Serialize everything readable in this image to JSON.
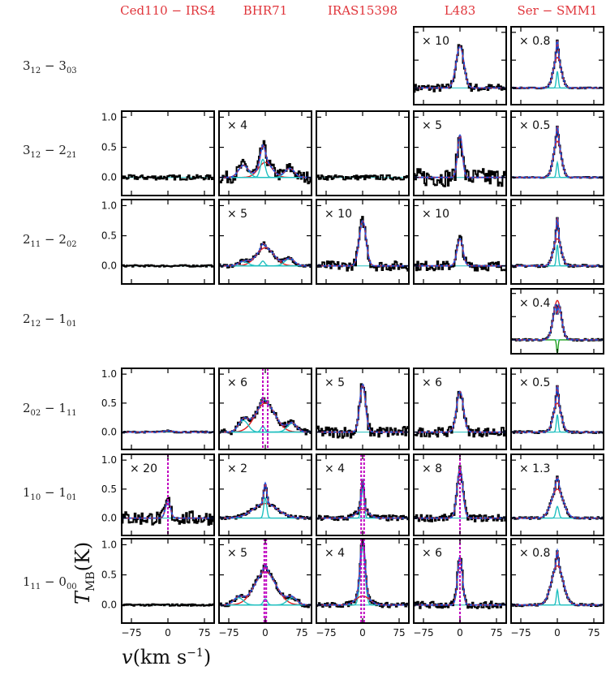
{
  "chart_data": {
    "type": "line",
    "xlabel": "v(km s−1)",
    "ylabel": "TMB(K)",
    "xlim": [
      -95,
      95
    ],
    "ylim": [
      -0.3,
      1.1
    ],
    "x_ticks": [
      -75,
      0,
      75
    ],
    "x_tick_labels": [
      "−75",
      "0",
      "75"
    ],
    "y_ticks": [
      0.0,
      0.5,
      1.0
    ],
    "y_tick_labels": [
      "0.0",
      "0.5",
      "1.0"
    ],
    "sources": [
      "Ced110 − IRS4",
      "BHR71",
      "IRAS15398",
      "L483",
      "Ser − SMM1"
    ],
    "transitions": [
      {
        "upper": "3",
        "usub": "12",
        "lower": "3",
        "lsub": "03"
      },
      {
        "upper": "3",
        "usub": "12",
        "lower": "2",
        "lsub": "21"
      },
      {
        "upper": "2",
        "usub": "11",
        "lower": "2",
        "lsub": "02"
      },
      {
        "upper": "2",
        "usub": "12",
        "lower": "1",
        "lsub": "01"
      },
      {
        "upper": "2",
        "usub": "02",
        "lower": "1",
        "lsub": "11"
      },
      {
        "upper": "1",
        "usub": "10",
        "lower": "1",
        "lsub": "01"
      },
      {
        "upper": "1",
        "usub": "11",
        "lower": "0",
        "lsub": "00"
      }
    ],
    "series_legend": {
      "observed": "#000000",
      "total_fit": "#1f4fe0",
      "broad_component": "#e02020",
      "narrow_component": "#20c0c0",
      "model": "#c000c0"
    },
    "panels": [
      {
        "row": 0,
        "col": 3,
        "scale": "× 10",
        "components": [
          {
            "type": "narrow",
            "center": 0,
            "width": 8,
            "amp": 0.75
          }
        ],
        "noise": 0.07
      },
      {
        "row": 0,
        "col": 4,
        "scale": "× 0.8",
        "components": [
          {
            "type": "broad",
            "center": 0,
            "width": 8,
            "amp": 0.55
          },
          {
            "type": "narrow",
            "center": 0,
            "width": 2,
            "amp": 0.3
          }
        ],
        "noise": 0.01
      },
      {
        "row": 1,
        "col": 0,
        "scale": "",
        "components": [],
        "noise": 0.04
      },
      {
        "row": 1,
        "col": 1,
        "scale": "× 4",
        "components": [
          {
            "type": "broad",
            "center": 0,
            "width": 14,
            "amp": 0.25
          },
          {
            "type": "narrow",
            "center": -5,
            "width": 5,
            "amp": 0.3
          },
          {
            "type": "wing",
            "center": -45,
            "width": 10,
            "amp": 0.2
          },
          {
            "type": "wing",
            "center": 50,
            "width": 10,
            "amp": 0.15
          }
        ],
        "noise": 0.1
      },
      {
        "row": 1,
        "col": 2,
        "scale": "",
        "components": [],
        "noise": 0.04
      },
      {
        "row": 1,
        "col": 3,
        "scale": "× 5",
        "components": [
          {
            "type": "narrow",
            "center": 0,
            "width": 5,
            "amp": 0.7
          }
        ],
        "noise": 0.15
      },
      {
        "row": 1,
        "col": 4,
        "scale": "× 0.5",
        "components": [
          {
            "type": "broad",
            "center": 0,
            "width": 8,
            "amp": 0.6
          },
          {
            "type": "narrow",
            "center": 0,
            "width": 2,
            "amp": 0.25
          }
        ],
        "noise": 0.01
      },
      {
        "row": 2,
        "col": 0,
        "scale": "",
        "components": [],
        "noise": 0.015
      },
      {
        "row": 2,
        "col": 1,
        "scale": "× 5",
        "components": [
          {
            "type": "broad",
            "center": 0,
            "width": 18,
            "amp": 0.3
          },
          {
            "type": "narrow",
            "center": -5,
            "width": 4,
            "amp": 0.08
          },
          {
            "type": "wing",
            "center": -45,
            "width": 10,
            "amp": 0.07
          },
          {
            "type": "wing",
            "center": 50,
            "width": 10,
            "amp": 0.12
          }
        ],
        "noise": 0.03
      },
      {
        "row": 2,
        "col": 2,
        "scale": "× 10",
        "components": [
          {
            "type": "narrow",
            "center": 0,
            "width": 7,
            "amp": 0.75
          }
        ],
        "noise": 0.08
      },
      {
        "row": 2,
        "col": 3,
        "scale": "× 10",
        "components": [
          {
            "type": "narrow",
            "center": 0,
            "width": 6,
            "amp": 0.45
          }
        ],
        "noise": 0.08
      },
      {
        "row": 2,
        "col": 4,
        "scale": "",
        "components": [
          {
            "type": "broad",
            "center": 0,
            "width": 8,
            "amp": 0.45
          },
          {
            "type": "narrow",
            "center": 0,
            "width": 2,
            "amp": 0.35
          }
        ],
        "noise": 0.02
      },
      {
        "row": 3,
        "col": 4,
        "scale": "× 0.4",
        "components": [
          {
            "type": "broad",
            "center": 0,
            "width": 8,
            "amp": 0.85
          },
          {
            "type": "absorb",
            "center": 0,
            "width": 1.5,
            "amp": -0.3
          }
        ],
        "noise": 0.02
      },
      {
        "row": 4,
        "col": 0,
        "scale": "",
        "components": [
          {
            "type": "narrow",
            "center": 0,
            "width": 8,
            "amp": 0.02
          }
        ],
        "noise": 0.012
      },
      {
        "row": 4,
        "col": 1,
        "scale": "× 6",
        "components": [
          {
            "type": "broad",
            "center": 0,
            "width": 20,
            "amp": 0.5
          },
          {
            "type": "narrow",
            "center": -5,
            "width": 4,
            "amp": 0.1
          },
          {
            "type": "wing",
            "center": -45,
            "width": 10,
            "amp": 0.2
          },
          {
            "type": "wing",
            "center": 55,
            "width": 10,
            "amp": 0.15
          }
        ],
        "noise": 0.05,
        "vlines": [
          -5,
          5
        ]
      },
      {
        "row": 4,
        "col": 2,
        "scale": "× 5",
        "components": [
          {
            "type": "narrow",
            "center": 0,
            "width": 6,
            "amp": 0.82
          }
        ],
        "noise": 0.1
      },
      {
        "row": 4,
        "col": 3,
        "scale": "× 6",
        "components": [
          {
            "type": "narrow",
            "center": 0,
            "width": 7,
            "amp": 0.7
          }
        ],
        "noise": 0.08
      },
      {
        "row": 4,
        "col": 4,
        "scale": "× 0.5",
        "components": [
          {
            "type": "broad",
            "center": 0,
            "width": 8,
            "amp": 0.5
          },
          {
            "type": "narrow",
            "center": 0,
            "width": 2,
            "amp": 0.3
          }
        ],
        "noise": 0.02
      },
      {
        "row": 5,
        "col": 0,
        "scale": "× 20",
        "components": [
          {
            "type": "narrow",
            "center": 0,
            "width": 5,
            "amp": 0.3
          }
        ],
        "noise": 0.12,
        "vlines": [
          0
        ]
      },
      {
        "row": 5,
        "col": 1,
        "scale": "× 2",
        "components": [
          {
            "type": "broad",
            "center": 0,
            "width": 25,
            "amp": 0.25
          },
          {
            "type": "narrow",
            "center": 0,
            "width": 3,
            "amp": 0.35
          }
        ],
        "noise": 0.03
      },
      {
        "row": 5,
        "col": 2,
        "scale": "× 4",
        "components": [
          {
            "type": "narrow",
            "center": 0,
            "width": 3,
            "amp": 0.5
          },
          {
            "type": "broad",
            "center": 0,
            "width": 12,
            "amp": 0.15
          }
        ],
        "noise": 0.05,
        "vlines": [
          -3,
          3
        ]
      },
      {
        "row": 5,
        "col": 3,
        "scale": "× 8",
        "components": [
          {
            "type": "narrow",
            "center": 0,
            "width": 6,
            "amp": 0.85
          }
        ],
        "noise": 0.06,
        "vlines": [
          0
        ]
      },
      {
        "row": 5,
        "col": 4,
        "scale": "× 1.3",
        "components": [
          {
            "type": "broad",
            "center": 0,
            "width": 12,
            "amp": 0.5
          },
          {
            "type": "narrow",
            "center": 0,
            "width": 3,
            "amp": 0.2
          }
        ],
        "noise": 0.02
      },
      {
        "row": 6,
        "col": 0,
        "scale": "",
        "components": [],
        "noise": 0.015
      },
      {
        "row": 6,
        "col": 1,
        "scale": "× 5",
        "components": [
          {
            "type": "broad",
            "center": 0,
            "width": 22,
            "amp": 0.55
          },
          {
            "type": "narrow",
            "center": 0,
            "width": 4,
            "amp": 0.1
          },
          {
            "type": "wing",
            "center": -55,
            "width": 10,
            "amp": 0.12
          },
          {
            "type": "wing",
            "center": 55,
            "width": 10,
            "amp": 0.12
          }
        ],
        "noise": 0.04,
        "vlines": [
          -2,
          2
        ]
      },
      {
        "row": 6,
        "col": 2,
        "scale": "× 4",
        "components": [
          {
            "type": "narrow",
            "center": 0,
            "width": 5,
            "amp": 0.95
          },
          {
            "type": "broad",
            "center": 0,
            "width": 14,
            "amp": 0.15
          }
        ],
        "noise": 0.04,
        "vlines": [
          -3,
          3
        ]
      },
      {
        "row": 6,
        "col": 3,
        "scale": "× 6",
        "components": [
          {
            "type": "narrow",
            "center": 0,
            "width": 5,
            "amp": 0.8
          }
        ],
        "noise": 0.06,
        "vlines": [
          0
        ]
      },
      {
        "row": 6,
        "col": 4,
        "scale": "× 0.8",
        "components": [
          {
            "type": "broad",
            "center": 0,
            "width": 12,
            "amp": 0.65
          },
          {
            "type": "narrow",
            "center": 0,
            "width": 2,
            "amp": 0.25
          }
        ],
        "noise": 0.02
      }
    ]
  }
}
